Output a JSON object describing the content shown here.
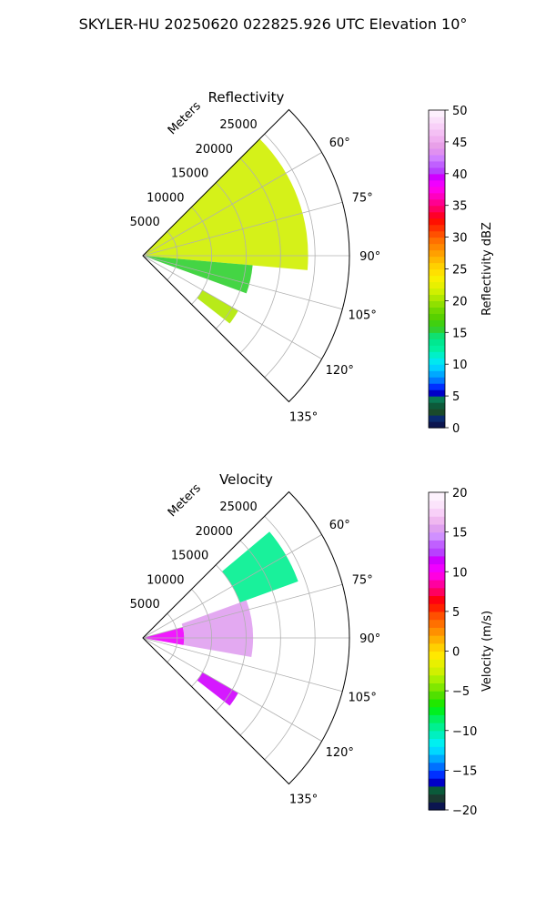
{
  "figure_title": "SKYLER-HU  20250620  022825.926 UTC Elevation 10°",
  "chart_data": [
    {
      "type": "heatmap",
      "title": "Reflectivity",
      "radial_label": "Meters",
      "range_ticks": [
        5000,
        10000,
        15000,
        20000,
        25000
      ],
      "range_tick_labels": [
        "5000",
        "10000",
        "15000",
        "20000",
        "25000"
      ],
      "azimuth_ticks": [
        60,
        75,
        90,
        105,
        120,
        135
      ],
      "azimuth_tick_labels": [
        "60°",
        "75°",
        "90°",
        "105°",
        "120°",
        "135°"
      ],
      "azimuth_range": [
        45,
        135
      ],
      "r_max": 30000,
      "grid": true,
      "colorbar": {
        "label": "Reflectivity dBZ",
        "range": [
          0,
          50
        ],
        "ticks": [
          0,
          5,
          10,
          15,
          20,
          25,
          30,
          35,
          40,
          45,
          50
        ],
        "tick_labels": [
          "0",
          "5",
          "10",
          "15",
          "20",
          "25",
          "30",
          "35",
          "40",
          "45",
          "50"
        ],
        "colormap": [
          "#0b1550",
          "#0a2a6e",
          "#1a4a2a",
          "#0d5a3a",
          "#0a7a55",
          "#0000c8",
          "#0030ff",
          "#0078ff",
          "#00a8ff",
          "#00d0ff",
          "#00e8f0",
          "#00f0c8",
          "#00f0a0",
          "#00e890",
          "#10e070",
          "#30d030",
          "#40d010",
          "#58d000",
          "#70d800",
          "#90e000",
          "#b0e800",
          "#d0f000",
          "#e8f000",
          "#f8f000",
          "#ffe000",
          "#ffd000",
          "#ffb800",
          "#ffa000",
          "#ff8800",
          "#ff7000",
          "#ff5000",
          "#ff3000",
          "#ff1000",
          "#ff0028",
          "#ff0060",
          "#ff0090",
          "#ff00c0",
          "#ff00e8",
          "#f000ff",
          "#d000ff",
          "#b840ff",
          "#c060ff",
          "#d080ff",
          "#e090f0",
          "#e8a0e8",
          "#f0b0f0",
          "#f4c0f4",
          "#f8d0f8",
          "#fae0fa",
          "#fdf0fd"
        ]
      },
      "field_summary": {
        "echo_sectors": [
          {
            "az_from": 45,
            "az_to": 95,
            "range_to": 24000,
            "typical_value": 21
          },
          {
            "az_from": 95,
            "az_to": 110,
            "range_to": 16000,
            "typical_value": 15
          },
          {
            "az_from": 120,
            "az_to": 128,
            "range_from": 10000,
            "range_to": 16000,
            "typical_value": 20
          }
        ]
      }
    },
    {
      "type": "heatmap",
      "title": "Velocity",
      "radial_label": "Meters",
      "range_ticks": [
        5000,
        10000,
        15000,
        20000,
        25000
      ],
      "range_tick_labels": [
        "5000",
        "10000",
        "15000",
        "20000",
        "25000"
      ],
      "azimuth_ticks": [
        60,
        75,
        90,
        105,
        120,
        135
      ],
      "azimuth_tick_labels": [
        "60°",
        "75°",
        "90°",
        "105°",
        "120°",
        "135°"
      ],
      "azimuth_range": [
        45,
        135
      ],
      "r_max": 30000,
      "grid": true,
      "colorbar": {
        "label": "Velocity (m/s)",
        "range": [
          -20,
          20
        ],
        "ticks": [
          -20,
          -15,
          -10,
          -5,
          0,
          5,
          10,
          15,
          20
        ],
        "tick_labels": [
          "−20",
          "−15",
          "−10",
          "−5",
          "0",
          "5",
          "10",
          "15",
          "20"
        ],
        "colormap": [
          "#0b1550",
          "#1a3a30",
          "#0a5a3a",
          "#0000c8",
          "#0030ff",
          "#0070ff",
          "#00a8ff",
          "#00d8ff",
          "#00f0f0",
          "#00f0c0",
          "#00f090",
          "#00f060",
          "#00f020",
          "#20e800",
          "#50e000",
          "#80e800",
          "#a8f000",
          "#d0f000",
          "#e8f000",
          "#ffe800",
          "#ffd000",
          "#ffb000",
          "#ff9000",
          "#ff7000",
          "#ff5000",
          "#ff2000",
          "#ff0010",
          "#ff0060",
          "#ff00a0",
          "#ff00e0",
          "#f000ff",
          "#d000ff",
          "#b840ff",
          "#c060ff",
          "#d090ff",
          "#e0a0f0",
          "#f0b8f0",
          "#f8d0f8",
          "#fbe4fb",
          "#fdf2fd"
        ]
      },
      "field_summary": {
        "echo_sectors": [
          {
            "az_from": 75,
            "az_to": 100,
            "range_from": 0,
            "range_to": 6000,
            "typical_value": 10
          },
          {
            "az_from": 50,
            "az_to": 70,
            "range_from": 15000,
            "range_to": 24000,
            "typical_value": -10
          },
          {
            "az_from": 70,
            "az_to": 100,
            "range_from": 6000,
            "range_to": 16000,
            "typical_value": 15
          },
          {
            "az_from": 120,
            "az_to": 128,
            "range_from": 10000,
            "range_to": 16000,
            "typical_value": 11
          }
        ]
      }
    }
  ]
}
